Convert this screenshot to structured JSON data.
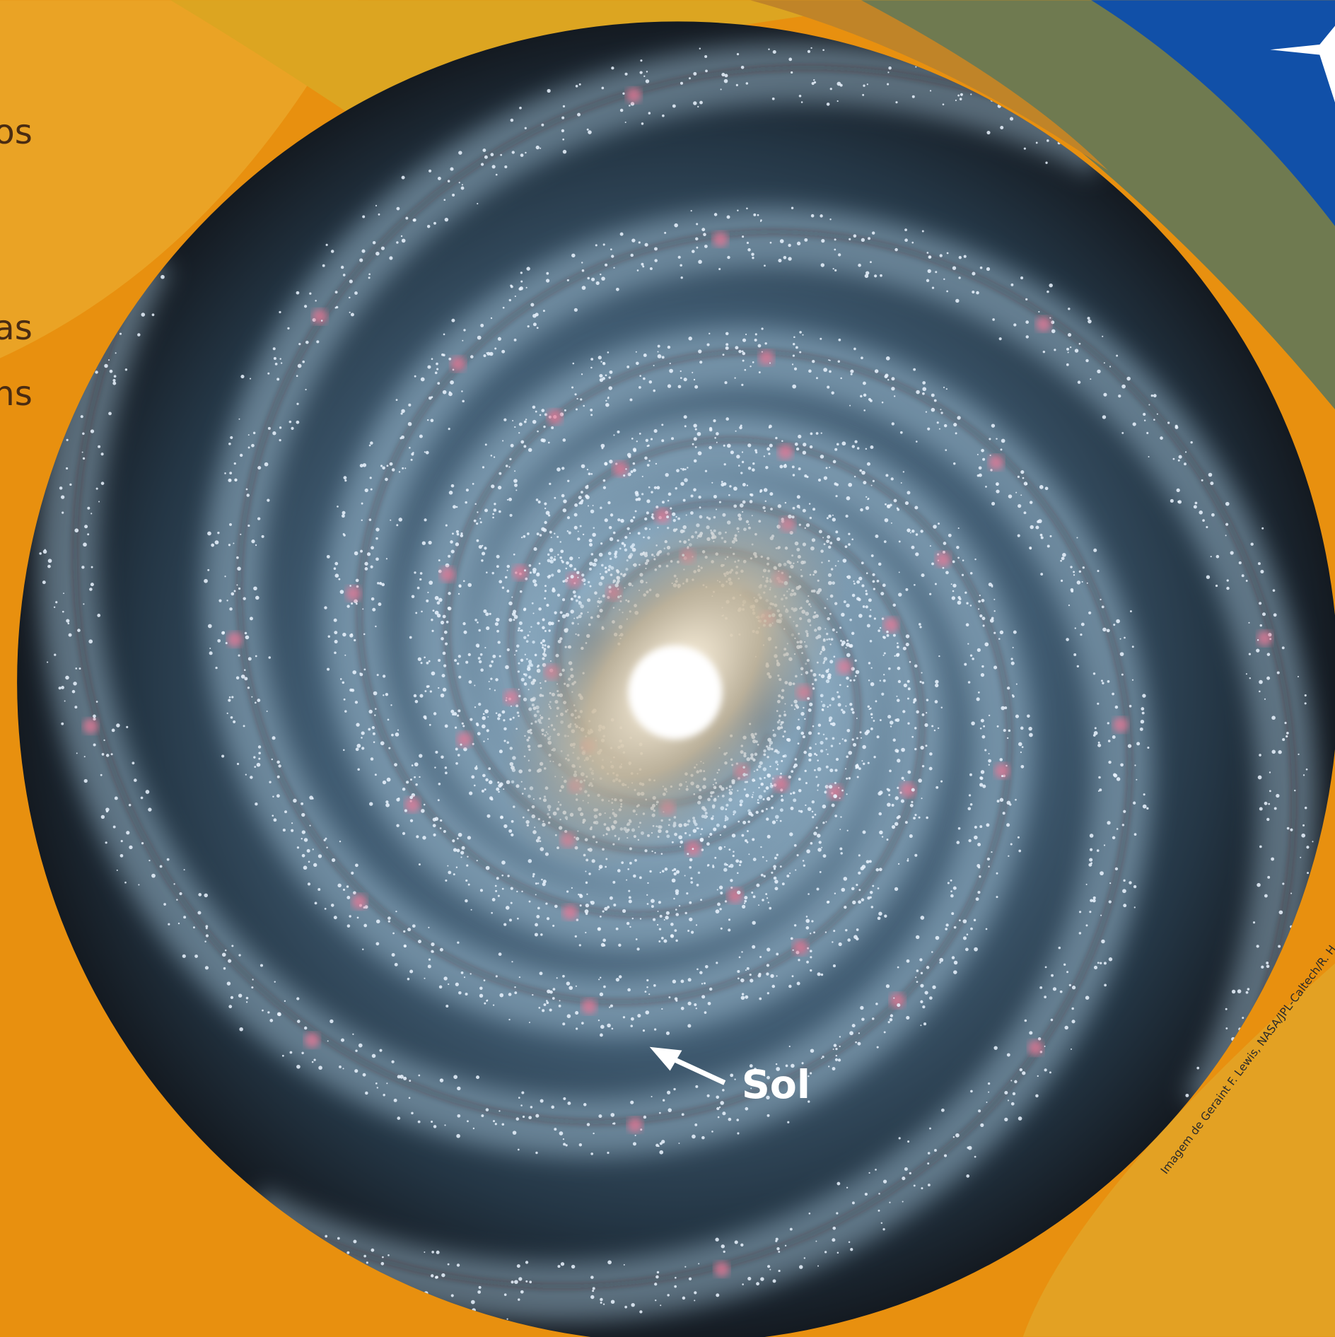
{
  "left_text_fragments": [
    "os",
    "as",
    "ns"
  ],
  "label": "Sol",
  "credit": "Imagem de Geraint F. Lewis, NASA/JPL-Caltech/R. H"
}
